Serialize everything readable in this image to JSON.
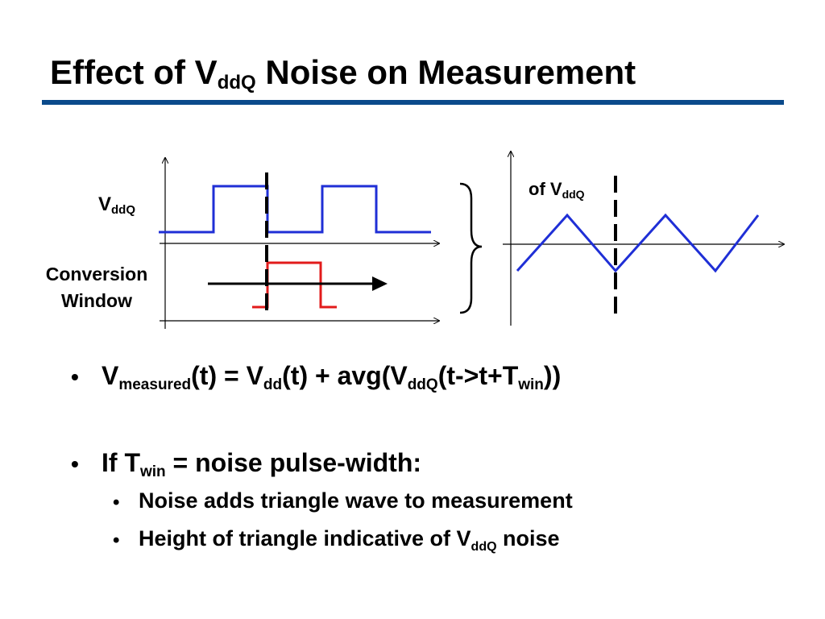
{
  "slide": {
    "title": {
      "pre": "Effect of V",
      "sub": "ddQ",
      "post": " Noise on Measurement"
    },
    "accent_color": "#0b4a8b"
  },
  "diagram": {
    "label_vddq": {
      "main": "V",
      "sub": "ddQ"
    },
    "label_conversion_line1": "Conversion",
    "label_conversion_line2": "Window",
    "label_right": {
      "pre": "of V",
      "sub": "ddQ"
    },
    "colors": {
      "vddq_wave": "#1f2fd6",
      "window_pulse": "#e21b1b",
      "axes": "#000000",
      "marker": "#000000"
    }
  },
  "bullets": [
    {
      "level": 1,
      "bullet": "•",
      "parts": [
        {
          "t": "V"
        },
        {
          "sub": "measured"
        },
        {
          "t": "(t) = V"
        },
        {
          "sub": "dd"
        },
        {
          "t": "(t) + avg(V"
        },
        {
          "sub": "ddQ"
        },
        {
          "t": "(t->t+T"
        },
        {
          "sub": "win"
        },
        {
          "t": "))"
        }
      ]
    },
    {
      "level": 1,
      "bullet": "•",
      "parts": [
        {
          "t": "If T"
        },
        {
          "sub": "win"
        },
        {
          "t": " = noise pulse-width:"
        }
      ]
    },
    {
      "level": 2,
      "bullet": "•",
      "parts": [
        {
          "t": "Noise adds triangle wave to measurement"
        }
      ]
    },
    {
      "level": 2,
      "bullet": "•",
      "parts": [
        {
          "t": "Height of triangle indicative of V"
        },
        {
          "sub": "ddQ"
        },
        {
          "t": " noise"
        }
      ]
    }
  ]
}
